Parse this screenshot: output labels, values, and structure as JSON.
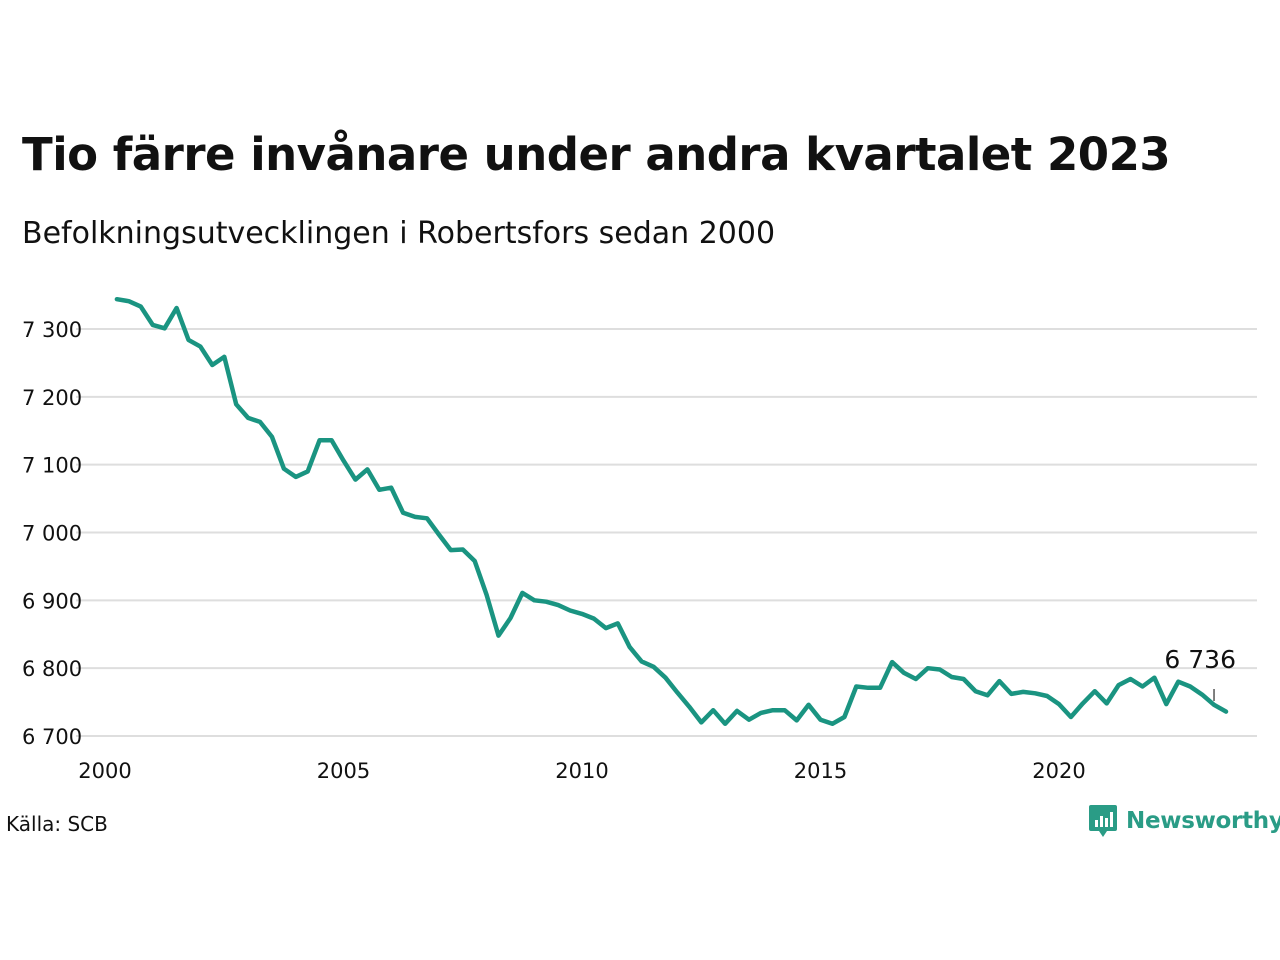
{
  "chart_data": {
    "type": "line",
    "title": "Tio färre invånare under andra kvartalet 2023",
    "subtitle": "Befolkningsutvecklingen i Robertsfors sedan 2000",
    "source": "Källa: SCB",
    "brand": "Newsworthy",
    "color": "#1a9481",
    "grid": true,
    "xlim": [
      2000,
      2024
    ],
    "ylim": [
      6690,
      7350
    ],
    "x_ticks": [
      {
        "value": 2000,
        "label": "2000"
      },
      {
        "value": 2005,
        "label": "2005"
      },
      {
        "value": 2010,
        "label": "2010"
      },
      {
        "value": 2015,
        "label": "2015"
      },
      {
        "value": 2020,
        "label": "2020"
      }
    ],
    "y_ticks": [
      {
        "value": 6700,
        "label": "6 700"
      },
      {
        "value": 6800,
        "label": "6 800"
      },
      {
        "value": 6900,
        "label": "6 900"
      },
      {
        "value": 7000,
        "label": "7 000"
      },
      {
        "value": 7100,
        "label": "7 100"
      },
      {
        "value": 7200,
        "label": "7 200"
      },
      {
        "value": 7300,
        "label": "7 300"
      }
    ],
    "annotation": {
      "label": "6 736",
      "x": 2023.25,
      "y": 6736
    },
    "series": [
      {
        "start_year": 2000,
        "frequency": "quarterly",
        "values": [
          7344,
          7341,
          7333,
          7306,
          7301,
          7331,
          7284,
          7274,
          7247,
          7259,
          7189,
          7169,
          7163,
          7141,
          7094,
          7082,
          7090,
          7136,
          7136,
          7106,
          7078,
          7093,
          7063,
          7066,
          7029,
          7023,
          7021,
          6997,
          6974,
          6975,
          6958,
          6908,
          6848,
          6874,
          6911,
          6900,
          6898,
          6893,
          6885,
          6880,
          6873,
          6859,
          6866,
          6831,
          6810,
          6802,
          6786,
          6764,
          6743,
          6720,
          6738,
          6718,
          6737,
          6724,
          6734,
          6738,
          6738,
          6723,
          6746,
          6724,
          6718,
          6728,
          6773,
          6771,
          6771,
          6809,
          6793,
          6784,
          6800,
          6798,
          6787,
          6784,
          6766,
          6760,
          6781,
          6762,
          6765,
          6763,
          6759,
          6747,
          6728,
          6748,
          6766,
          6748,
          6775,
          6784,
          6773,
          6786,
          6747,
          6780,
          6773,
          6761,
          6746,
          6736
        ]
      }
    ]
  }
}
